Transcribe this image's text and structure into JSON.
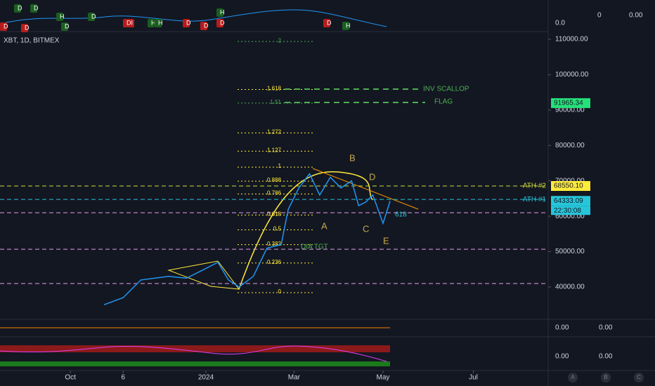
{
  "chart_data": {
    "type": "line",
    "symbol": "XBT, 1D, BITMEX",
    "x": [
      0.76,
      1.19,
      1.59,
      2.22,
      2.62,
      3.02,
      3.33,
      3.57,
      3.81,
      4.13,
      4.44,
      4.76,
      4.92,
      5.16,
      5.4,
      5.63,
      5.87,
      6.11,
      6.35,
      6.51,
      6.67,
      6.83,
      7.06,
      7.22
    ],
    "values": [
      35000,
      37000,
      42000,
      43000,
      42500,
      45000,
      47000,
      42000,
      40000,
      43000,
      51000,
      52000,
      62000,
      68000,
      72000,
      66000,
      71000,
      68000,
      70000,
      63000,
      64000,
      66000,
      58000,
      64300
    ],
    "color": "#2196f3",
    "xlim": [
      -1.59,
      10.79
    ],
    "xticks": [
      {
        "value": 0,
        "label": "Oct"
      },
      {
        "value": 1.19,
        "label": "6"
      },
      {
        "value": 3.06,
        "label": "2024"
      },
      {
        "value": 5.05,
        "label": "Mar"
      },
      {
        "value": 7.06,
        "label": "May"
      },
      {
        "value": 9.1,
        "label": "Jul"
      }
    ],
    "ylim": [
      30870,
      112180
    ],
    "yticks": [
      {
        "value": 40000,
        "label": "40000.00"
      },
      {
        "value": 50000,
        "label": "50000.00"
      },
      {
        "value": 60000,
        "label": "60000.00"
      },
      {
        "value": 70000,
        "label": "70000.00"
      },
      {
        "value": 80000,
        "label": "80000.00"
      },
      {
        "value": 90000,
        "label": "90000.00"
      },
      {
        "value": 100000,
        "label": "100000.00"
      },
      {
        "value": 110000,
        "label": "110000.00"
      }
    ],
    "fib_levels": [
      {
        "value": 38410,
        "label": "0"
      },
      {
        "value": 46780,
        "label": "0.236"
      },
      {
        "value": 51960,
        "label": "0.382"
      },
      {
        "value": 56150,
        "label": "0.5"
      },
      {
        "value": 60340,
        "label": "0.618"
      },
      {
        "value": 66300,
        "label": "0.786"
      },
      {
        "value": 69920,
        "label": "0.888"
      },
      {
        "value": 73890,
        "label": "1"
      },
      {
        "value": 78400,
        "label": "1.127"
      },
      {
        "value": 83540,
        "label": "1.272"
      },
      {
        "value": 91980,
        "label": "1.51"
      },
      {
        "value": 95820,
        "label": "1.618"
      },
      {
        "value": 109370,
        "label": "2"
      }
    ],
    "hlines": [
      {
        "value": 68550.1,
        "label": "ATH #2",
        "color": "#cddc39"
      },
      {
        "value": 64760,
        "label": "ATH #1",
        "color": "#26c6da"
      },
      {
        "value": 60980,
        "color": "#e1a0e8"
      },
      {
        "value": 50670,
        "color": "#e1a0e8"
      },
      {
        "value": 40990,
        "color": "#e1a0e8"
      }
    ],
    "price_tags": [
      {
        "value": 91965.34,
        "label": "91965.34",
        "color": "#26e07a"
      },
      {
        "value": 68550.1,
        "label": "68550.10",
        "color": "#ffeb3b"
      },
      {
        "value": 64333.09,
        "label": "64333.09",
        "color": "#26c6da"
      }
    ],
    "countdown": "22:30:08",
    "annotations": [
      "INV SCALLOP",
      "FLAG",
      "DIA TGT",
      "A",
      "B",
      "C",
      "D",
      "E",
      "618"
    ],
    "signals": [
      "D",
      "D",
      "D",
      "D",
      "H",
      "D",
      "D",
      "DI",
      "H",
      "H",
      "H",
      "D",
      "D",
      "D",
      "D",
      "H"
    ],
    "panel_labels": [
      "0.0",
      "0",
      "0.00",
      "0.00",
      "0.00",
      "0.00",
      "0.00"
    ],
    "buttons": [
      "A",
      "B",
      "C"
    ]
  }
}
